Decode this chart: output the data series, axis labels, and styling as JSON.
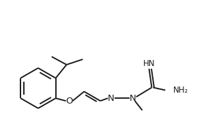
{
  "bg_color": "#ffffff",
  "line_color": "#1a1a1a",
  "text_color": "#1a1a1a",
  "lw": 1.4,
  "fs": 8.5,
  "figsize": [
    3.24,
    1.85
  ],
  "dpi": 100,
  "xlim": [
    0,
    324
  ],
  "ylim": [
    0,
    185
  ]
}
